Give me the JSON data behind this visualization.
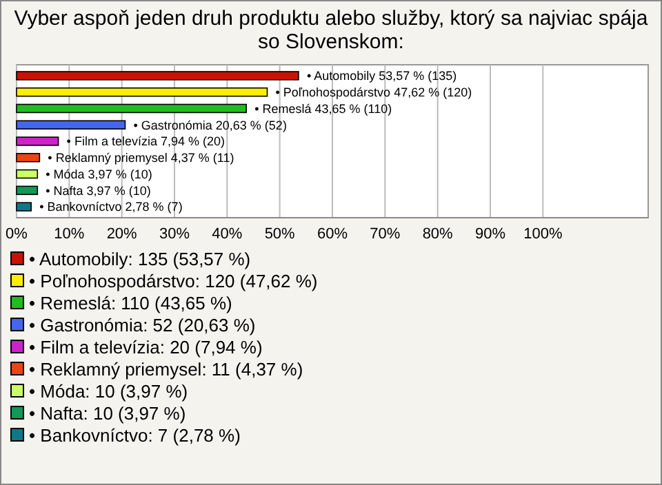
{
  "chart_data": {
    "type": "bar",
    "orientation": "horizontal",
    "stacked": true,
    "title": "Vyber aspoň jeden druh produktu alebo služby, ktorý sa najviac spája so Slovenskom:",
    "categories": [
      null,
      null,
      null,
      null,
      null,
      null,
      null,
      null,
      null
    ],
    "series": [
      {
        "name": "• Automobily: 135 (53,57 %)",
        "color": "#cc1100",
        "values": [
          53.57,
          null,
          null,
          null,
          null,
          null,
          null,
          null,
          null
        ],
        "value_labels": [
          "• Automobily 53,57 % (135)",
          null,
          null,
          null,
          null,
          null,
          null,
          null,
          null
        ]
      },
      {
        "name": "• Poľnohospodárstvo: 120 (47,62 %)",
        "color": "#ffee00",
        "values": [
          null,
          47.62,
          null,
          null,
          null,
          null,
          null,
          null,
          null
        ],
        "value_labels": [
          null,
          "• Poľnohospodárstvo 47,62 % (120)",
          null,
          null,
          null,
          null,
          null,
          null,
          null
        ]
      },
      {
        "name": "• Remeslá: 110 (43,65 %)",
        "color": "#22bb22",
        "values": [
          null,
          null,
          43.65,
          null,
          null,
          null,
          null,
          null,
          null
        ],
        "value_labels": [
          null,
          null,
          "• Remeslá 43,65 % (110)",
          null,
          null,
          null,
          null,
          null,
          null
        ]
      },
      {
        "name": "• Gastronómia: 52 (20,63 %)",
        "color": "#4466ee",
        "values": [
          null,
          null,
          null,
          20.63,
          null,
          null,
          null,
          null,
          null
        ],
        "value_labels": [
          null,
          null,
          null,
          "• Gastronómia 20,63 % (52)",
          null,
          null,
          null,
          null,
          null
        ]
      },
      {
        "name": "• Film a televízia: 20 (7,94 %)",
        "color": "#cc22cc",
        "values": [
          null,
          null,
          null,
          null,
          7.94,
          null,
          null,
          null,
          null
        ],
        "value_labels": [
          null,
          null,
          null,
          null,
          "• Film a televízia 7,94 % (20)",
          null,
          null,
          null,
          null
        ]
      },
      {
        "name": "• Reklamný priemysel: 11 (4,37 %)",
        "color": "#ee4411",
        "values": [
          null,
          null,
          null,
          null,
          null,
          4.37,
          null,
          null,
          null
        ],
        "value_labels": [
          null,
          null,
          null,
          null,
          null,
          "• Reklamný priemysel 4,37 % (11)",
          null,
          null,
          null
        ]
      },
      {
        "name": "• Móda: 10 (3,97 %)",
        "color": "#ccff66",
        "values": [
          null,
          null,
          null,
          null,
          null,
          null,
          3.97,
          null,
          null
        ],
        "value_labels": [
          null,
          null,
          null,
          null,
          null,
          null,
          "• Móda 3,97 % (10)",
          null,
          null
        ]
      },
      {
        "name": "• Nafta: 10 (3,97 %)",
        "color": "#119955",
        "values": [
          null,
          null,
          null,
          null,
          null,
          null,
          null,
          3.97,
          null
        ],
        "value_labels": [
          null,
          null,
          null,
          null,
          null,
          null,
          null,
          "• Nafta 3,97 % (10)",
          null
        ]
      },
      {
        "name": "• Bankovníctvo: 7 (2,78 %)",
        "color": "#117788",
        "values": [
          null,
          null,
          null,
          null,
          null,
          null,
          null,
          null,
          2.78
        ],
        "value_labels": [
          null,
          null,
          null,
          null,
          null,
          null,
          null,
          null,
          "• Bankovníctvo 2,78 % (7)"
        ]
      }
    ],
    "xlim": [
      0,
      120
    ],
    "xticks": [
      {
        "value": 0,
        "label": "0%"
      },
      {
        "value": 10,
        "label": "10%"
      },
      {
        "value": 20,
        "label": "20%"
      },
      {
        "value": 30,
        "label": "30%"
      },
      {
        "value": 40,
        "label": "40%"
      },
      {
        "value": 50,
        "label": "50%"
      },
      {
        "value": 60,
        "label": "60%"
      },
      {
        "value": 70,
        "label": "70%"
      },
      {
        "value": 80,
        "label": "80%"
      },
      {
        "value": 90,
        "label": "90%"
      },
      {
        "value": 100,
        "label": "100%"
      }
    ],
    "grid": "x",
    "legend": "bottom",
    "tick_labels": "x"
  }
}
